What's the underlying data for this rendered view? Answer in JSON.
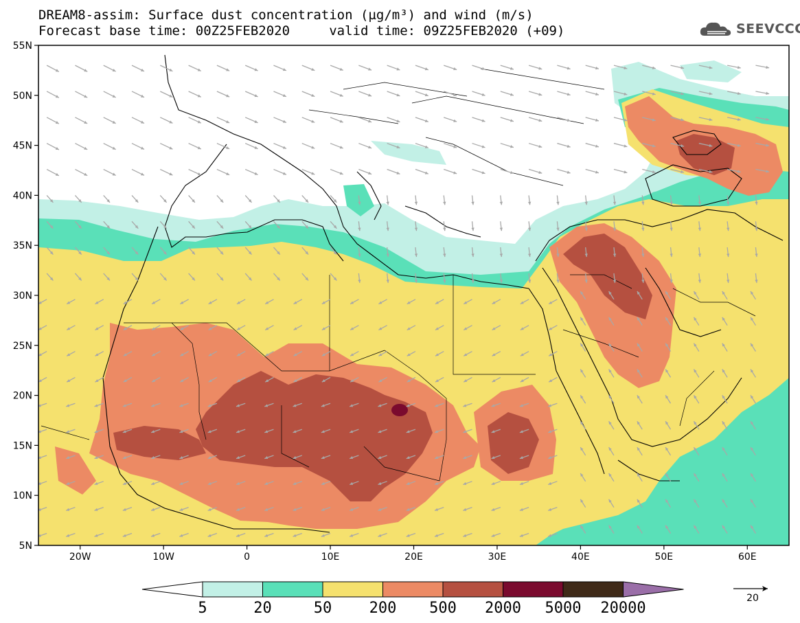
{
  "header": {
    "title_line1": "DREAM8-assim: Surface dust concentration (µg/m³) and wind (m/s)",
    "title_line2": "Forecast base time: 00Z25FEB2020     valid time: 09Z25FEB2020 (+09)"
  },
  "logo": {
    "text": "SEEVCCC",
    "icon": "cloud-icon"
  },
  "map": {
    "lon_range": [
      -25,
      65
    ],
    "lat_range": [
      5,
      55
    ],
    "lat_ticks": [
      {
        "value": 55,
        "label": "55N"
      },
      {
        "value": 50,
        "label": "50N"
      },
      {
        "value": 45,
        "label": "45N"
      },
      {
        "value": 40,
        "label": "40N"
      },
      {
        "value": 35,
        "label": "35N"
      },
      {
        "value": 30,
        "label": "30N"
      },
      {
        "value": 25,
        "label": "25N"
      },
      {
        "value": 20,
        "label": "20N"
      },
      {
        "value": 15,
        "label": "15N"
      },
      {
        "value": 10,
        "label": "10N"
      },
      {
        "value": 5,
        "label": "5N"
      }
    ],
    "lon_ticks": [
      {
        "value": -20,
        "label": "20W"
      },
      {
        "value": -10,
        "label": "10W"
      },
      {
        "value": 0,
        "label": "0"
      },
      {
        "value": 10,
        "label": "10E"
      },
      {
        "value": 20,
        "label": "20E"
      },
      {
        "value": 30,
        "label": "30E"
      },
      {
        "value": 40,
        "label": "40E"
      },
      {
        "value": 50,
        "label": "50E"
      },
      {
        "value": 60,
        "label": "60E"
      }
    ]
  },
  "legend": {
    "levels": [
      {
        "label": "5",
        "color": "#ffffff"
      },
      {
        "label": "20",
        "color": "#c2f0e6"
      },
      {
        "label": "50",
        "color": "#5ae0b8"
      },
      {
        "label": "200",
        "color": "#f5e16e"
      },
      {
        "label": "500",
        "color": "#ec8a64"
      },
      {
        "label": "2000",
        "color": "#b55040"
      },
      {
        "label": "5000",
        "color": "#7a0a2e"
      },
      {
        "label": "20000",
        "color": "#3f2a18"
      }
    ],
    "overflow_color": "#9a6ea8"
  },
  "wind_reference": {
    "label": "20"
  },
  "colors": {
    "frame": "#000000",
    "wind_arrow": "#a8a8a8",
    "coast": "#000000",
    "level_20_50": "#c2f0e6",
    "level_50_200": "#5ae0b8",
    "level_200_500": "#f5e16e",
    "level_500_2000": "#ec8a64",
    "level_2000_5000": "#b55040",
    "level_5000_20000": "#7a0a2e"
  }
}
